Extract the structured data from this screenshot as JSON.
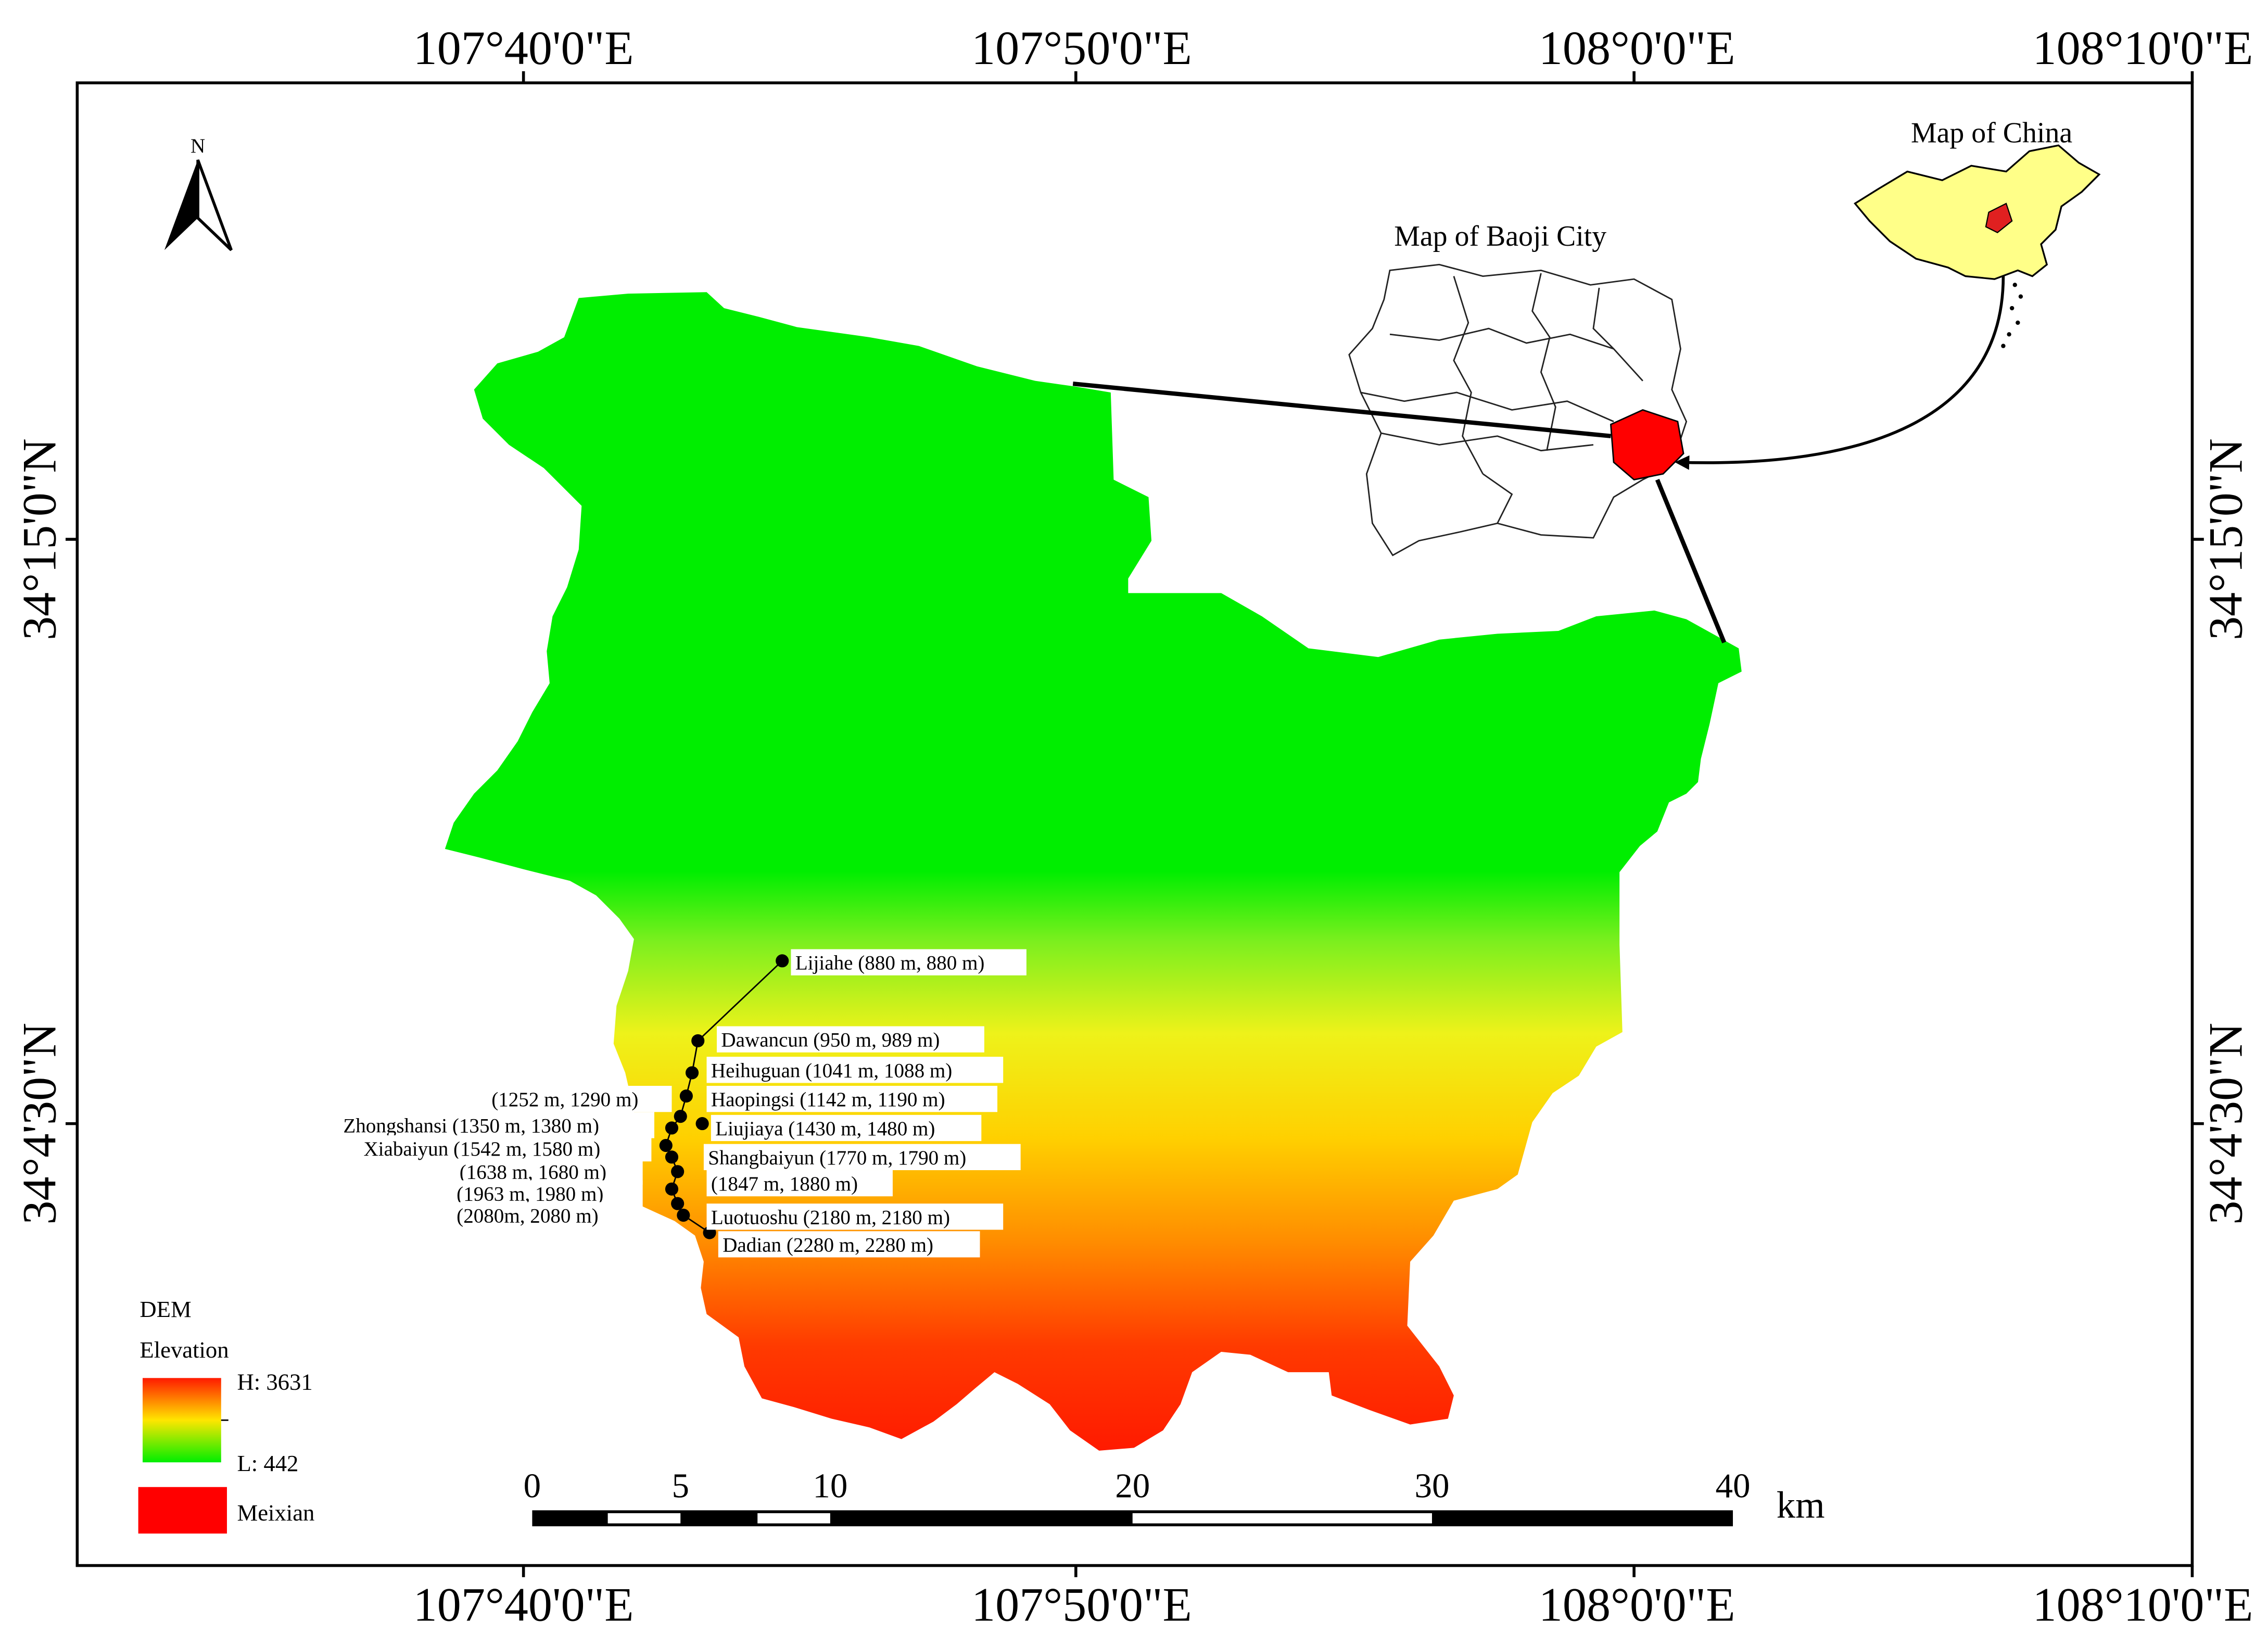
{
  "coordinates": {
    "lon_labels": [
      "107°40'0\"E",
      "107°50'0\"E",
      "108°0'0\"E",
      "108°10'0\"E"
    ],
    "lat_labels": [
      "34°15'0\"N",
      "34°4'30\"N"
    ]
  },
  "north_arrow": {
    "label": "N"
  },
  "insets": {
    "china_title": "Map of China",
    "baoji_title": "Map of Baoji City"
  },
  "legend": {
    "title": "DEM",
    "subtitle": "Elevation",
    "high_label": "H: 3631",
    "low_label": "L: 442",
    "region_label": "Meixian",
    "colors": {
      "high": "#ff1a00",
      "mid": "#ffe600",
      "low": "#00ee00",
      "region": "#ff0000"
    }
  },
  "scale_bar": {
    "ticks": [
      "0",
      "5",
      "10",
      "20",
      "30",
      "40"
    ],
    "unit": "km"
  },
  "sites": [
    {
      "name": "Lijiahe (880 m, 880 m)"
    },
    {
      "name": "Dawancun (950 m, 989 m)"
    },
    {
      "name": "Heihuguan (1041 m, 1088 m)"
    },
    {
      "name": "Haopingsi (1142 m, 1190 m)"
    },
    {
      "name": "(1252 m, 1290 m)"
    },
    {
      "name": "Zhongshansi (1350 m, 1380 m)"
    },
    {
      "name": "Liujiaya (1430 m, 1480 m)"
    },
    {
      "name": "Xiabaiyun (1542 m, 1580 m)"
    },
    {
      "name": "Shangbaiyun (1770 m, 1790 m)"
    },
    {
      "name": "(1638 m, 1680 m)"
    },
    {
      "name": "(1847 m, 1880 m)"
    },
    {
      "name": "(1963 m, 1980 m)"
    },
    {
      "name": "Luotuoshu (2180 m, 2180 m)"
    },
    {
      "name": "(2080m, 2080 m)"
    },
    {
      "name": "Dadian (2280 m, 2280 m)"
    }
  ]
}
